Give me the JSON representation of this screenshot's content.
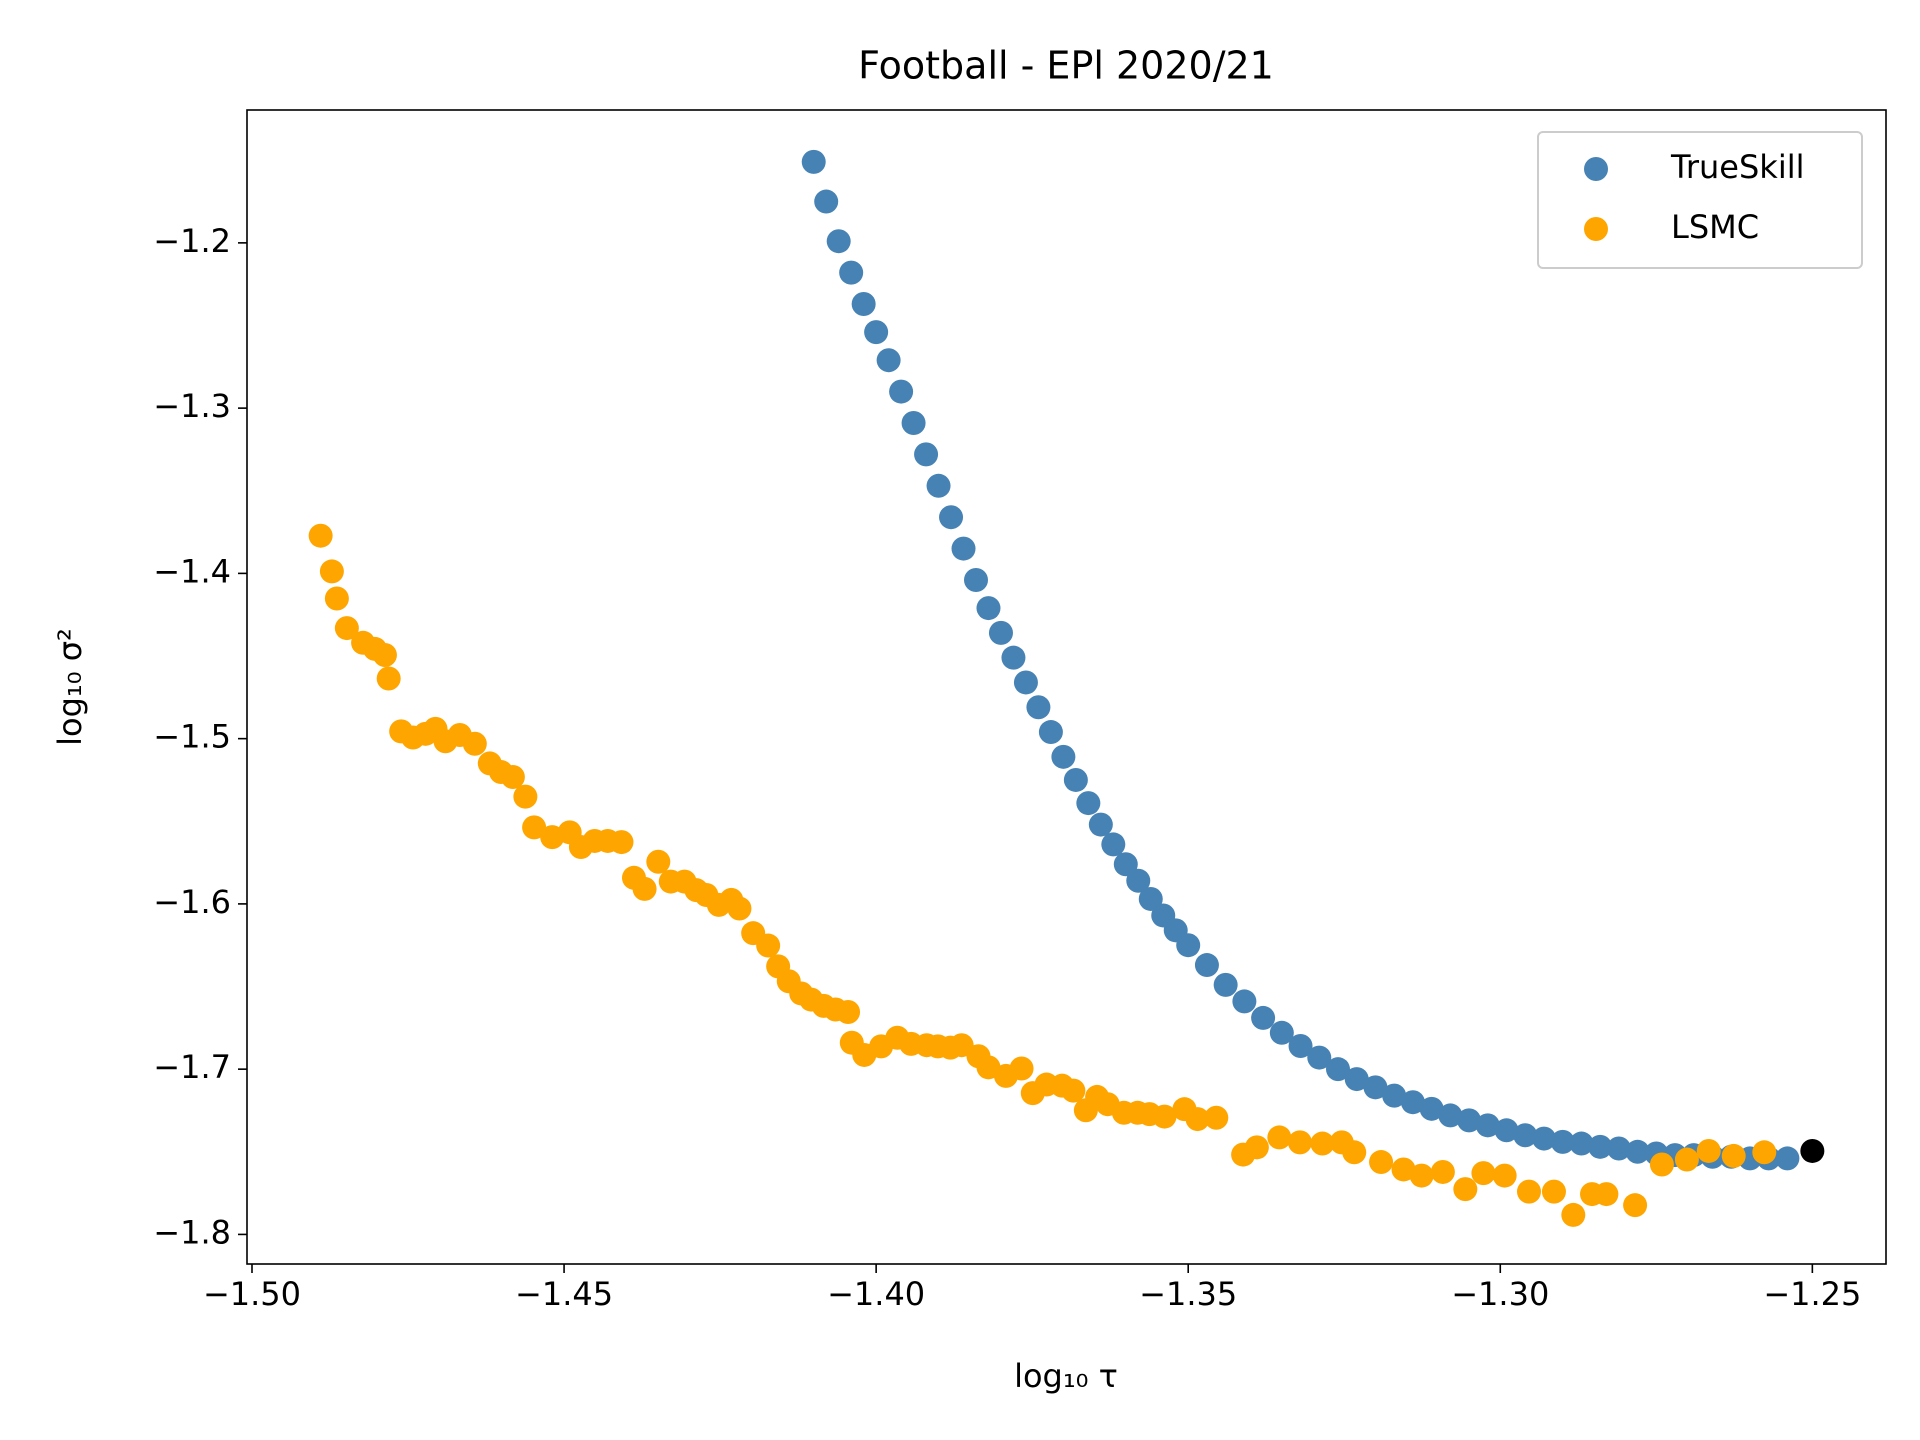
{
  "chart_data": {
    "type": "scatter",
    "title": "Football - EPl 2020/21",
    "x_label": "log₁₀ τ",
    "y_label": "log₁₀ σ²",
    "xlim": [
      -1.5008,
      -1.2382
    ],
    "ylim": [
      -1.8179,
      -1.1196
    ],
    "xticks": [
      {
        "value": -1.5,
        "label": "−1.50"
      },
      {
        "value": -1.45,
        "label": "−1.45"
      },
      {
        "value": -1.4,
        "label": "−1.40"
      },
      {
        "value": -1.35,
        "label": "−1.35"
      },
      {
        "value": -1.3,
        "label": "−1.30"
      },
      {
        "value": -1.25,
        "label": "−1.25"
      }
    ],
    "yticks": [
      {
        "value": -1.8,
        "label": "−1.8"
      },
      {
        "value": -1.7,
        "label": "−1.7"
      },
      {
        "value": -1.6,
        "label": "−1.6"
      },
      {
        "value": -1.5,
        "label": "−1.5"
      },
      {
        "value": -1.4,
        "label": "−1.4"
      },
      {
        "value": -1.3,
        "label": "−1.3"
      },
      {
        "value": -1.2,
        "label": "−1.2"
      }
    ],
    "grid": false,
    "legend": "upper right",
    "series": [
      {
        "name": "TrueSkill",
        "color": "#4682b4",
        "x": [
          -1.41,
          -1.408,
          -1.406,
          -1.404,
          -1.402,
          -1.4,
          -1.398,
          -1.396,
          -1.394,
          -1.392,
          -1.39,
          -1.388,
          -1.386,
          -1.384,
          -1.382,
          -1.38,
          -1.378,
          -1.376,
          -1.374,
          -1.372,
          -1.37,
          -1.368,
          -1.366,
          -1.364,
          -1.362,
          -1.36,
          -1.358,
          -1.356,
          -1.354,
          -1.352,
          -1.35,
          -1.347,
          -1.344,
          -1.341,
          -1.338,
          -1.335,
          -1.332,
          -1.329,
          -1.326,
          -1.323,
          -1.32,
          -1.317,
          -1.314,
          -1.311,
          -1.308,
          -1.305,
          -1.302,
          -1.299,
          -1.296,
          -1.293,
          -1.29,
          -1.287,
          -1.284,
          -1.281,
          -1.278,
          -1.275,
          -1.272,
          -1.269,
          -1.266,
          -1.263,
          -1.26,
          -1.257,
          -1.254
        ],
        "values": [
          -1.151,
          -1.175,
          -1.199,
          -1.218,
          -1.237,
          -1.254,
          -1.271,
          -1.29,
          -1.309,
          -1.328,
          -1.347,
          -1.366,
          -1.385,
          -1.404,
          -1.421,
          -1.436,
          -1.451,
          -1.466,
          -1.481,
          -1.496,
          -1.511,
          -1.525,
          -1.539,
          -1.552,
          -1.564,
          -1.576,
          -1.586,
          -1.597,
          -1.607,
          -1.616,
          -1.625,
          -1.637,
          -1.649,
          -1.659,
          -1.669,
          -1.678,
          -1.686,
          -1.693,
          -1.7,
          -1.706,
          -1.711,
          -1.716,
          -1.72,
          -1.724,
          -1.728,
          -1.731,
          -1.734,
          -1.737,
          -1.74,
          -1.742,
          -1.744,
          -1.745,
          -1.747,
          -1.748,
          -1.75,
          -1.751,
          -1.752,
          -1.752,
          -1.753,
          -1.753,
          -1.754,
          -1.754,
          -1.754
        ]
      },
      {
        "name": "LSMC",
        "color": "#ffa500",
        "x": [
          -1.489,
          -1.4872,
          -1.4864,
          -1.4848,
          -1.4822,
          -1.4803,
          -1.4787,
          -1.4781,
          -1.4761,
          -1.4742,
          -1.4722,
          -1.4706,
          -1.469,
          -1.4667,
          -1.4643,
          -1.4619,
          -1.4601,
          -1.4582,
          -1.4562,
          -1.4548,
          -1.4519,
          -1.4491,
          -1.4473,
          -1.4451,
          -1.443,
          -1.4408,
          -1.4388,
          -1.4371,
          -1.4349,
          -1.4329,
          -1.4307,
          -1.4288,
          -1.4272,
          -1.4252,
          -1.4232,
          -1.4219,
          -1.4197,
          -1.4173,
          -1.4157,
          -1.414,
          -1.412,
          -1.4104,
          -1.4084,
          -1.4065,
          -1.4045,
          -1.4039,
          -1.4019,
          -1.3992,
          -1.3966,
          -1.3944,
          -1.3919,
          -1.3901,
          -1.3881,
          -1.3863,
          -1.3836,
          -1.382,
          -1.3792,
          -1.3767,
          -1.3749,
          -1.3727,
          -1.3702,
          -1.3684,
          -1.3664,
          -1.3646,
          -1.3629,
          -1.3603,
          -1.3581,
          -1.3562,
          -1.3538,
          -1.3506,
          -1.3485,
          -1.3455,
          -1.3412,
          -1.339,
          -1.3354,
          -1.3321,
          -1.3285,
          -1.3254,
          -1.3234,
          -1.3191,
          -1.3155,
          -1.3126,
          -1.3092,
          -1.3056,
          -1.3027,
          -1.2993,
          -1.2954,
          -1.2914,
          -1.2883,
          -1.2853,
          -1.283,
          -1.2784,
          -1.2741,
          -1.2701,
          -1.2666,
          -1.2626,
          -1.2577
        ],
        "values": [
          -1.3772,
          -1.3988,
          -1.4152,
          -1.4331,
          -1.442,
          -1.4457,
          -1.4494,
          -1.4636,
          -1.4956,
          -1.4993,
          -1.4971,
          -1.4941,
          -1.5016,
          -1.4978,
          -1.5031,
          -1.515,
          -1.5202,
          -1.5232,
          -1.5351,
          -1.5537,
          -1.5596,
          -1.5567,
          -1.5656,
          -1.5619,
          -1.5619,
          -1.5626,
          -1.5842,
          -1.5909,
          -1.5745,
          -1.5865,
          -1.5865,
          -1.5917,
          -1.5946,
          -1.6006,
          -1.5976,
          -1.6028,
          -1.6177,
          -1.6252,
          -1.6378,
          -1.6468,
          -1.6542,
          -1.6579,
          -1.6617,
          -1.6639,
          -1.6654,
          -1.684,
          -1.6914,
          -1.6862,
          -1.681,
          -1.6847,
          -1.6855,
          -1.6862,
          -1.687,
          -1.6855,
          -1.6922,
          -1.6989,
          -1.7041,
          -1.6996,
          -1.7145,
          -1.7093,
          -1.71,
          -1.713,
          -1.7249,
          -1.7168,
          -1.7212,
          -1.7264,
          -1.7264,
          -1.7272,
          -1.7287,
          -1.7242,
          -1.7302,
          -1.7294,
          -1.7517,
          -1.7473,
          -1.7413,
          -1.7443,
          -1.745,
          -1.7443,
          -1.7503,
          -1.7562,
          -1.7607,
          -1.7644,
          -1.7622,
          -1.7726,
          -1.7629,
          -1.7644,
          -1.7741,
          -1.7741,
          -1.7882,
          -1.7756,
          -1.7756,
          -1.7823,
          -1.7577,
          -1.7547,
          -1.7495,
          -1.7525,
          -1.7503
        ]
      }
    ],
    "highlight_point": {
      "x": -1.25,
      "y": -1.7495,
      "color": "#000000"
    }
  }
}
